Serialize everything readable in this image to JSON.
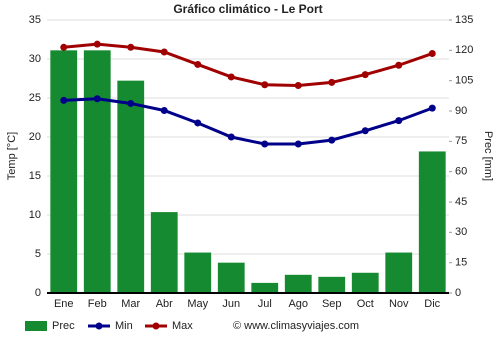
{
  "chart_data": {
    "type": "combo",
    "title": "Gráfico climático - Le Port",
    "ylabel": "Temp [°C]",
    "y2label": "Prec [mm]",
    "categories": [
      "Ene",
      "Feb",
      "Mar",
      "Abr",
      "May",
      "Jun",
      "Jul",
      "Ago",
      "Sep",
      "Oct",
      "Nov",
      "Dic"
    ],
    "ylim": [
      0,
      35
    ],
    "yticks": [
      0,
      5,
      10,
      15,
      20,
      25,
      30,
      35
    ],
    "y2lim": [
      0,
      135
    ],
    "y2ticks": [
      0,
      15,
      30,
      45,
      60,
      75,
      90,
      105,
      120,
      135
    ],
    "grid": true,
    "series": [
      {
        "name": "Prec",
        "type": "bar",
        "axis": "y2",
        "color": "#168a30",
        "values": [
          120,
          120,
          105,
          40,
          20,
          15,
          5,
          9,
          8,
          10,
          20,
          70
        ]
      },
      {
        "name": "Min",
        "type": "line",
        "color": "#00008b",
        "values": [
          24.7,
          24.9,
          24.3,
          23.4,
          21.8,
          20.0,
          19.1,
          19.1,
          19.6,
          20.8,
          22.1,
          23.7
        ]
      },
      {
        "name": "Max",
        "type": "line",
        "color": "#a00000",
        "values": [
          31.5,
          31.9,
          31.5,
          30.9,
          29.3,
          27.7,
          26.7,
          26.6,
          27.0,
          28.0,
          29.2,
          30.7
        ]
      }
    ],
    "website": "© www.climasyviajes.com"
  }
}
